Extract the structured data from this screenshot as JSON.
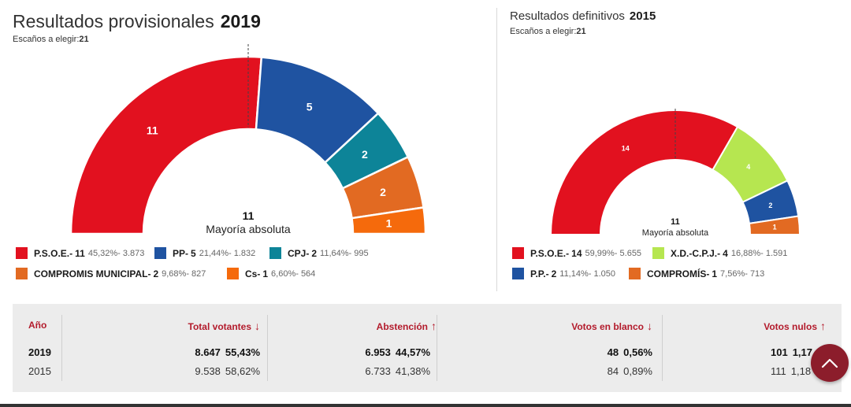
{
  "chart_data": [
    {
      "type": "pie",
      "subtype": "parliament-semicircle",
      "title": "Resultados provisionales",
      "year": "2019",
      "seats_label": "Escaños a elegir:",
      "total_seats": "21",
      "majority_value": "11",
      "majority_label": "Mayoría absoluta",
      "series": [
        {
          "party": "P.S.O.E.-",
          "seats": 11,
          "seats_label": "11",
          "detail": "45,32%- 3.873",
          "color": "#e2111f"
        },
        {
          "party": "PP-",
          "seats": 5,
          "seats_label": "5",
          "detail": "21,44%- 1.832",
          "color": "#1f53a1"
        },
        {
          "party": "CPJ-",
          "seats": 2,
          "seats_label": "2",
          "detail": "11,64%- 995",
          "color": "#0d8498"
        },
        {
          "party": "COMPROMIS MUNICIPAL-",
          "seats": 2,
          "seats_label": "2",
          "detail": "9,68%- 827",
          "color": "#e26a22"
        },
        {
          "party": "Cs-",
          "seats": 1,
          "seats_label": "1",
          "detail": "6,60%- 564",
          "color": "#f56a0c"
        }
      ]
    },
    {
      "type": "pie",
      "subtype": "parliament-semicircle",
      "title": "Resultados definitivos",
      "year": "2015",
      "seats_label": "Escaños a elegir:",
      "total_seats": "21",
      "majority_value": "11",
      "majority_label": "Mayoría absoluta",
      "series": [
        {
          "party": "P.S.O.E.-",
          "seats": 14,
          "seats_label": "14",
          "detail": "59,99%- 5.655",
          "color": "#e2111f"
        },
        {
          "party": "X.D.-C.P.J.-",
          "seats": 4,
          "seats_label": "4",
          "detail": "16,88%- 1.591",
          "color": "#b6e650"
        },
        {
          "party": "P.P.-",
          "seats": 2,
          "seats_label": "2",
          "detail": "11,14%- 1.050",
          "color": "#1f53a1"
        },
        {
          "party": "COMPROMÍS-",
          "seats": 1,
          "seats_label": "1",
          "detail": "7,56%- 713",
          "color": "#e26a22"
        }
      ]
    }
  ],
  "table": {
    "headers": {
      "year": "Año",
      "voters": "Total votantes",
      "voters_arrow": "↓",
      "abstention": "Abstención",
      "abstention_arrow": "↑",
      "blank": "Votos en blanco",
      "blank_arrow": "↓",
      "null": "Votos nulos",
      "null_arrow": "↑"
    },
    "rows": [
      {
        "year": "2019",
        "voters": "8.647",
        "voters_pct": "55,43%",
        "abstention": "6.953",
        "abstention_pct": "44,57%",
        "blank": "48",
        "blank_pct": "0,56%",
        "null": "101",
        "null_pct": "1,17"
      },
      {
        "year": "2015",
        "voters": "9.538",
        "voters_pct": "58,62%",
        "abstention": "6.733",
        "abstention_pct": "41,38%",
        "blank": "84",
        "blank_pct": "0,89%",
        "null": "111",
        "null_pct": "1,18"
      }
    ]
  },
  "scroll_top_icon": "chevron-up-icon",
  "colors": {
    "accent": "#b31b2c",
    "fab": "#8c1d2b",
    "table_bg": "#ececec"
  }
}
